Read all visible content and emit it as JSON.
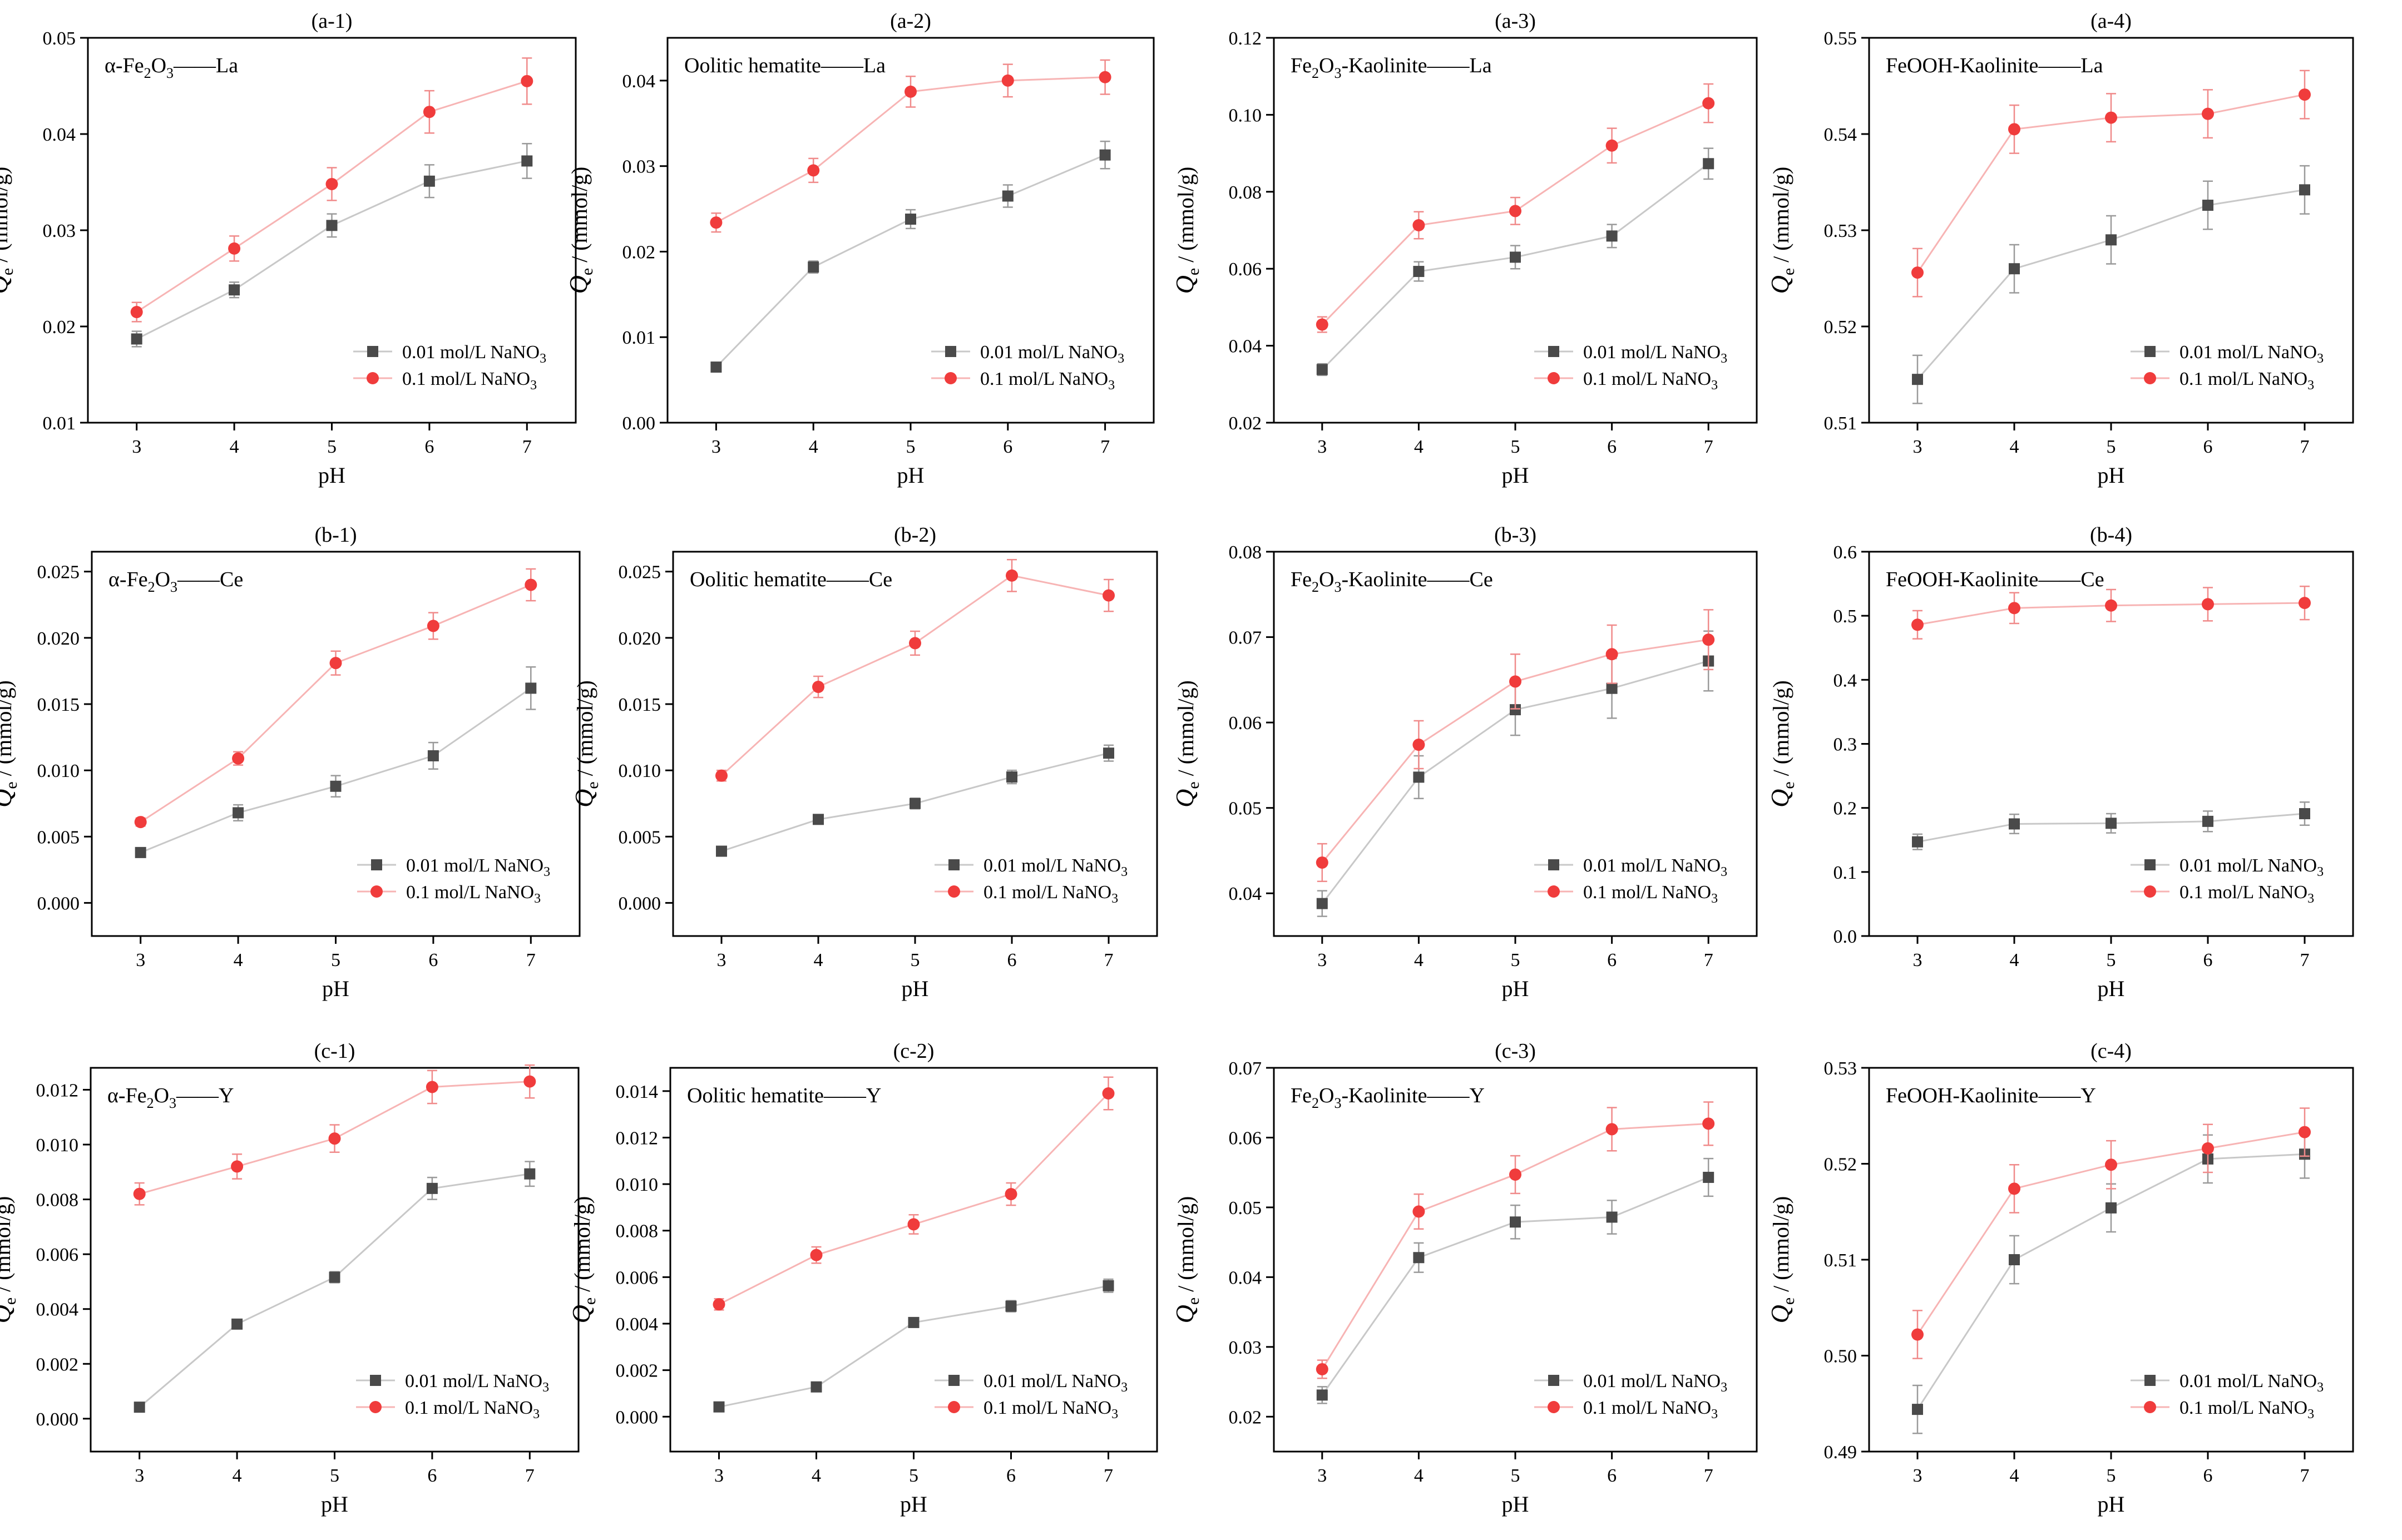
{
  "figure": {
    "colors": {
      "series_a": "#4a4a4a",
      "series_b": "#f03c3c",
      "line_a": "#c8c8c8",
      "line_b": "#f7b4b4",
      "err_a": "#9a9a9a",
      "err_b": "#f08a8a"
    }
  },
  "chart_data": [
    {
      "type": "line",
      "id": "a-1",
      "title": "(a-1)",
      "label": [
        "α-Fe",
        "2",
        "O",
        "3",
        "——La"
      ],
      "xlabel": "pH",
      "ylabel_main": "Q",
      "ylabel_sub": "e",
      "ylabel_unit": " / (mmol/g)",
      "x": [
        3,
        4,
        5,
        6,
        7
      ],
      "xlim": [
        2.5,
        7.5
      ],
      "ylim": [
        0.01,
        0.05
      ],
      "yticks": [
        0.01,
        0.02,
        0.03,
        0.04,
        0.05
      ],
      "ytick_labels": [
        "0.01",
        "0.02",
        "0.03",
        "0.04",
        "0.05"
      ],
      "legend_position": "bottom-right",
      "series": [
        {
          "name": "0.01 mol/L NaNO",
          "sub": "3",
          "marker": "square",
          "values": [
            0.0187,
            0.0238,
            0.0305,
            0.0351,
            0.0372
          ],
          "err": [
            0.0008,
            0.0008,
            0.0012,
            0.0017,
            0.0018
          ]
        },
        {
          "name": "0.1 mol/L NaNO",
          "sub": "3",
          "marker": "circle",
          "values": [
            0.0215,
            0.0281,
            0.0348,
            0.0423,
            0.0455
          ],
          "err": [
            0.001,
            0.0013,
            0.0017,
            0.0022,
            0.0024
          ]
        }
      ]
    },
    {
      "type": "line",
      "id": "a-2",
      "title": "(a-2)",
      "label": [
        "Oolitic hematite——La"
      ],
      "xlabel": "pH",
      "ylabel_main": "Q",
      "ylabel_sub": "e",
      "ylabel_unit": " / (mmol/g)",
      "x": [
        3,
        4,
        5,
        6,
        7
      ],
      "xlim": [
        2.5,
        7.5
      ],
      "ylim": [
        0.0,
        0.045
      ],
      "yticks": [
        0.0,
        0.01,
        0.02,
        0.03,
        0.04
      ],
      "ytick_labels": [
        "0.00",
        "0.01",
        "0.02",
        "0.03",
        "0.04"
      ],
      "legend_position": "bottom-right",
      "series": [
        {
          "name": "0.01 mol/L NaNO",
          "sub": "3",
          "marker": "square",
          "values": [
            0.0065,
            0.0182,
            0.0238,
            0.0265,
            0.0313
          ],
          "err": [
            0.0004,
            0.0007,
            0.0011,
            0.0013,
            0.0016
          ]
        },
        {
          "name": "0.1 mol/L NaNO",
          "sub": "3",
          "marker": "circle",
          "values": [
            0.0234,
            0.0295,
            0.0387,
            0.04,
            0.0404
          ],
          "err": [
            0.0011,
            0.0014,
            0.0018,
            0.0019,
            0.002
          ]
        }
      ]
    },
    {
      "type": "line",
      "id": "a-3",
      "title": "(a-3)",
      "label": [
        "Fe",
        "2",
        "O",
        "3",
        "-Kaolinite——La"
      ],
      "xlabel": "pH",
      "ylabel_main": "Q",
      "ylabel_sub": "e",
      "ylabel_unit": " / (mmol/g)",
      "x": [
        3,
        4,
        5,
        6,
        7
      ],
      "xlim": [
        2.5,
        7.5
      ],
      "ylim": [
        0.02,
        0.12
      ],
      "yticks": [
        0.02,
        0.04,
        0.06,
        0.08,
        0.1,
        0.12
      ],
      "ytick_labels": [
        "0.02",
        "0.04",
        "0.06",
        "0.08",
        "0.10",
        "0.12"
      ],
      "legend_position": "bottom-right",
      "series": [
        {
          "name": "0.01 mol/L NaNO",
          "sub": "3",
          "marker": "square",
          "values": [
            0.0338,
            0.0593,
            0.063,
            0.0685,
            0.0873
          ],
          "err": [
            0.0015,
            0.0025,
            0.003,
            0.003,
            0.004
          ]
        },
        {
          "name": "0.1 mol/L NaNO",
          "sub": "3",
          "marker": "circle",
          "values": [
            0.0455,
            0.0713,
            0.075,
            0.092,
            0.103
          ],
          "err": [
            0.002,
            0.0035,
            0.0035,
            0.0045,
            0.005
          ]
        }
      ]
    },
    {
      "type": "line",
      "id": "a-4",
      "title": "(a-4)",
      "label": [
        "FeOOH-Kaolinite——La"
      ],
      "xlabel": "pH",
      "ylabel_main": "Q",
      "ylabel_sub": "e",
      "ylabel_unit": " / (mmol/g)",
      "x": [
        3,
        4,
        5,
        6,
        7
      ],
      "xlim": [
        2.5,
        7.5
      ],
      "ylim": [
        0.51,
        0.55
      ],
      "yticks": [
        0.51,
        0.52,
        0.53,
        0.54,
        0.55
      ],
      "ytick_labels": [
        "0.51",
        "0.52",
        "0.53",
        "0.54",
        "0.55"
      ],
      "legend_position": "bottom-right",
      "series": [
        {
          "name": "0.01 mol/L NaNO",
          "sub": "3",
          "marker": "square",
          "values": [
            0.5145,
            0.526,
            0.529,
            0.5326,
            0.5342
          ],
          "err": [
            0.0025,
            0.0025,
            0.0025,
            0.0025,
            0.0025
          ]
        },
        {
          "name": "0.1 mol/L NaNO",
          "sub": "3",
          "marker": "circle",
          "values": [
            0.5256,
            0.5405,
            0.5417,
            0.5421,
            0.5441
          ],
          "err": [
            0.0025,
            0.0025,
            0.0025,
            0.0025,
            0.0025
          ]
        }
      ]
    },
    {
      "type": "line",
      "id": "b-1",
      "title": "(b-1)",
      "label": [
        "α-Fe",
        "2",
        "O",
        "3",
        "——Ce"
      ],
      "xlabel": "pH",
      "ylabel_main": "Q",
      "ylabel_sub": "e",
      "ylabel_unit": " / (mmol/g)",
      "x": [
        3,
        4,
        5,
        6,
        7
      ],
      "xlim": [
        2.5,
        7.5
      ],
      "ylim": [
        -0.0025,
        0.0265
      ],
      "yticks": [
        0.0,
        0.005,
        0.01,
        0.015,
        0.02,
        0.025
      ],
      "ytick_labels": [
        "0.000",
        "0.005",
        "0.010",
        "0.015",
        "0.020",
        "0.025"
      ],
      "legend_position": "bottom-right",
      "series": [
        {
          "name": "0.01 mol/L NaNO",
          "sub": "3",
          "marker": "square",
          "values": [
            0.0038,
            0.0068,
            0.0088,
            0.0111,
            0.0162
          ],
          "err": [
            0.0003,
            0.0006,
            0.0008,
            0.001,
            0.0016
          ]
        },
        {
          "name": "0.1 mol/L NaNO",
          "sub": "3",
          "marker": "circle",
          "values": [
            0.0061,
            0.0109,
            0.0181,
            0.0209,
            0.024
          ],
          "err": [
            0.0003,
            0.0005,
            0.0009,
            0.001,
            0.0012
          ]
        }
      ]
    },
    {
      "type": "line",
      "id": "b-2",
      "title": "(b-2)",
      "label": [
        "Oolitic hematite——Ce"
      ],
      "xlabel": "pH",
      "ylabel_main": "Q",
      "ylabel_sub": "e",
      "ylabel_unit": " / (mmol/g)",
      "x": [
        3,
        4,
        5,
        6,
        7
      ],
      "xlim": [
        2.5,
        7.5
      ],
      "ylim": [
        -0.0025,
        0.0265
      ],
      "yticks": [
        0.0,
        0.005,
        0.01,
        0.015,
        0.02,
        0.025
      ],
      "ytick_labels": [
        "0.000",
        "0.005",
        "0.010",
        "0.015",
        "0.020",
        "0.025"
      ],
      "legend_position": "bottom-right",
      "series": [
        {
          "name": "0.01 mol/L NaNO",
          "sub": "3",
          "marker": "square",
          "values": [
            0.0039,
            0.0063,
            0.0075,
            0.0095,
            0.0113
          ],
          "err": [
            0.0002,
            0.0003,
            0.0004,
            0.0005,
            0.0006
          ]
        },
        {
          "name": "0.1 mol/L NaNO",
          "sub": "3",
          "marker": "circle",
          "values": [
            0.0096,
            0.0163,
            0.0196,
            0.0247,
            0.0232
          ],
          "err": [
            0.0004,
            0.0008,
            0.0009,
            0.0012,
            0.0012
          ]
        }
      ]
    },
    {
      "type": "line",
      "id": "b-3",
      "title": "(b-3)",
      "label": [
        "Fe",
        "2",
        "O",
        "3",
        "-Kaolinite——Ce"
      ],
      "xlabel": "pH",
      "ylabel_main": "Q",
      "ylabel_sub": "e",
      "ylabel_unit": " / (mmol/g)",
      "x": [
        3,
        4,
        5,
        6,
        7
      ],
      "xlim": [
        2.5,
        7.5
      ],
      "ylim": [
        0.035,
        0.08
      ],
      "yticks": [
        0.04,
        0.05,
        0.06,
        0.07,
        0.08
      ],
      "ytick_labels": [
        "0.04",
        "0.05",
        "0.06",
        "0.07",
        "0.08"
      ],
      "legend_position": "bottom-right",
      "series": [
        {
          "name": "0.01 mol/L NaNO",
          "sub": "3",
          "marker": "square",
          "values": [
            0.0388,
            0.0536,
            0.0615,
            0.064,
            0.0672
          ],
          "err": [
            0.0015,
            0.0025,
            0.003,
            0.0035,
            0.0035
          ]
        },
        {
          "name": "0.1 mol/L NaNO",
          "sub": "3",
          "marker": "circle",
          "values": [
            0.0436,
            0.0574,
            0.0648,
            0.068,
            0.0697
          ],
          "err": [
            0.0022,
            0.0028,
            0.0032,
            0.0034,
            0.0035
          ]
        }
      ]
    },
    {
      "type": "line",
      "id": "b-4",
      "title": "(b-4)",
      "label": [
        "FeOOH-Kaolinite——Ce"
      ],
      "xlabel": "pH",
      "ylabel_main": "Q",
      "ylabel_sub": "e",
      "ylabel_unit": " / (mmol/g)",
      "x": [
        3,
        4,
        5,
        6,
        7
      ],
      "xlim": [
        2.5,
        7.5
      ],
      "ylim": [
        0.0,
        0.6
      ],
      "yticks": [
        0.0,
        0.1,
        0.2,
        0.3,
        0.4,
        0.5,
        0.6
      ],
      "ytick_labels": [
        "0.0",
        "0.1",
        "0.2",
        "0.3",
        "0.4",
        "0.5",
        "0.6"
      ],
      "legend_position": "bottom-right",
      "series": [
        {
          "name": "0.01 mol/L NaNO",
          "sub": "3",
          "marker": "square",
          "values": [
            0.147,
            0.175,
            0.176,
            0.179,
            0.191
          ],
          "err": [
            0.012,
            0.015,
            0.015,
            0.016,
            0.018
          ]
        },
        {
          "name": "0.1 mol/L NaNO",
          "sub": "3",
          "marker": "circle",
          "values": [
            0.486,
            0.512,
            0.516,
            0.518,
            0.52
          ],
          "err": [
            0.022,
            0.024,
            0.025,
            0.026,
            0.026
          ]
        }
      ]
    },
    {
      "type": "line",
      "id": "c-1",
      "title": "(c-1)",
      "label": [
        "α-Fe",
        "2",
        "O",
        "3",
        "——Y"
      ],
      "xlabel": "pH",
      "ylabel_main": "Q",
      "ylabel_sub": "e",
      "ylabel_unit": " / (mmol/g)",
      "x": [
        3,
        4,
        5,
        6,
        7
      ],
      "xlim": [
        2.5,
        7.5
      ],
      "ylim": [
        -0.0012,
        0.0128
      ],
      "yticks": [
        0.0,
        0.002,
        0.004,
        0.006,
        0.008,
        0.01,
        0.012
      ],
      "ytick_labels": [
        "0.000",
        "0.002",
        "0.004",
        "0.006",
        "0.008",
        "0.010",
        "0.012"
      ],
      "legend_position": "bottom-right",
      "series": [
        {
          "name": "0.01 mol/L NaNO",
          "sub": "3",
          "marker": "square",
          "values": [
            0.00042,
            0.00345,
            0.00516,
            0.0084,
            0.00893
          ],
          "err": [
            3e-05,
            0.00012,
            0.0002,
            0.0004,
            0.00045
          ]
        },
        {
          "name": "0.1 mol/L NaNO",
          "sub": "3",
          "marker": "circle",
          "values": [
            0.0082,
            0.0092,
            0.01022,
            0.0121,
            0.0123
          ],
          "err": [
            0.0004,
            0.00045,
            0.0005,
            0.0006,
            0.0006
          ]
        }
      ]
    },
    {
      "type": "line",
      "id": "c-2",
      "title": "(c-2)",
      "label": [
        "Oolitic hematite——Y"
      ],
      "xlabel": "pH",
      "ylabel_main": "Q",
      "ylabel_sub": "e",
      "ylabel_unit": " / (mmol/g)",
      "x": [
        3,
        4,
        5,
        6,
        7
      ],
      "xlim": [
        2.5,
        7.5
      ],
      "ylim": [
        -0.0015,
        0.015
      ],
      "yticks": [
        0.0,
        0.002,
        0.004,
        0.006,
        0.008,
        0.01,
        0.012,
        0.014
      ],
      "ytick_labels": [
        "0.000",
        "0.002",
        "0.004",
        "0.006",
        "0.008",
        "0.010",
        "0.012",
        "0.014"
      ],
      "legend_position": "bottom-right",
      "series": [
        {
          "name": "0.01 mol/L NaNO",
          "sub": "3",
          "marker": "square",
          "values": [
            0.00042,
            0.00128,
            0.00405,
            0.00475,
            0.00563
          ],
          "err": [
            3e-05,
            8e-05,
            0.0002,
            0.00024,
            0.00028
          ]
        },
        {
          "name": "0.1 mol/L NaNO",
          "sub": "3",
          "marker": "circle",
          "values": [
            0.00483,
            0.00695,
            0.00827,
            0.00957,
            0.0139
          ],
          "err": [
            0.00024,
            0.00035,
            0.00041,
            0.00048,
            0.0007
          ]
        }
      ]
    },
    {
      "type": "line",
      "id": "c-3",
      "title": "(c-3)",
      "label": [
        "Fe",
        "2",
        "O",
        "3",
        "-Kaolinite——Y"
      ],
      "xlabel": "pH",
      "ylabel_main": "Q",
      "ylabel_sub": "e",
      "ylabel_unit": " / (mmol/g)",
      "x": [
        3,
        4,
        5,
        6,
        7
      ],
      "xlim": [
        2.5,
        7.5
      ],
      "ylim": [
        0.015,
        0.07
      ],
      "yticks": [
        0.02,
        0.03,
        0.04,
        0.05,
        0.06,
        0.07
      ],
      "ytick_labels": [
        "0.02",
        "0.03",
        "0.04",
        "0.05",
        "0.06",
        "0.07"
      ],
      "legend_position": "bottom-right",
      "series": [
        {
          "name": "0.01 mol/L NaNO",
          "sub": "3",
          "marker": "square",
          "values": [
            0.0231,
            0.0428,
            0.0479,
            0.0486,
            0.0543
          ],
          "err": [
            0.0012,
            0.0021,
            0.0024,
            0.0024,
            0.0027
          ]
        },
        {
          "name": "0.1 mol/L NaNO",
          "sub": "3",
          "marker": "circle",
          "values": [
            0.0268,
            0.0494,
            0.0547,
            0.0612,
            0.062
          ],
          "err": [
            0.0013,
            0.0025,
            0.0027,
            0.0031,
            0.0031
          ]
        }
      ]
    },
    {
      "type": "line",
      "id": "c-4",
      "title": "(c-4)",
      "label": [
        "FeOOH-Kaolinite——Y"
      ],
      "xlabel": "pH",
      "ylabel_main": "Q",
      "ylabel_sub": "e",
      "ylabel_unit": " / (mmol/g)",
      "x": [
        3,
        4,
        5,
        6,
        7
      ],
      "xlim": [
        2.5,
        7.5
      ],
      "ylim": [
        0.49,
        0.53
      ],
      "yticks": [
        0.49,
        0.5,
        0.51,
        0.52,
        0.53
      ],
      "ytick_labels": [
        "0.49",
        "0.50",
        "0.51",
        "0.52",
        "0.53"
      ],
      "legend_position": "bottom-right",
      "series": [
        {
          "name": "0.01 mol/L NaNO",
          "sub": "3",
          "marker": "square",
          "values": [
            0.4944,
            0.51,
            0.5154,
            0.5205,
            0.521
          ],
          "err": [
            0.0025,
            0.0025,
            0.0025,
            0.0025,
            0.0025
          ]
        },
        {
          "name": "0.1 mol/L NaNO",
          "sub": "3",
          "marker": "circle",
          "values": [
            0.5022,
            0.5174,
            0.5199,
            0.5216,
            0.5233
          ],
          "err": [
            0.0025,
            0.0025,
            0.0025,
            0.0025,
            0.0025
          ]
        }
      ]
    }
  ]
}
